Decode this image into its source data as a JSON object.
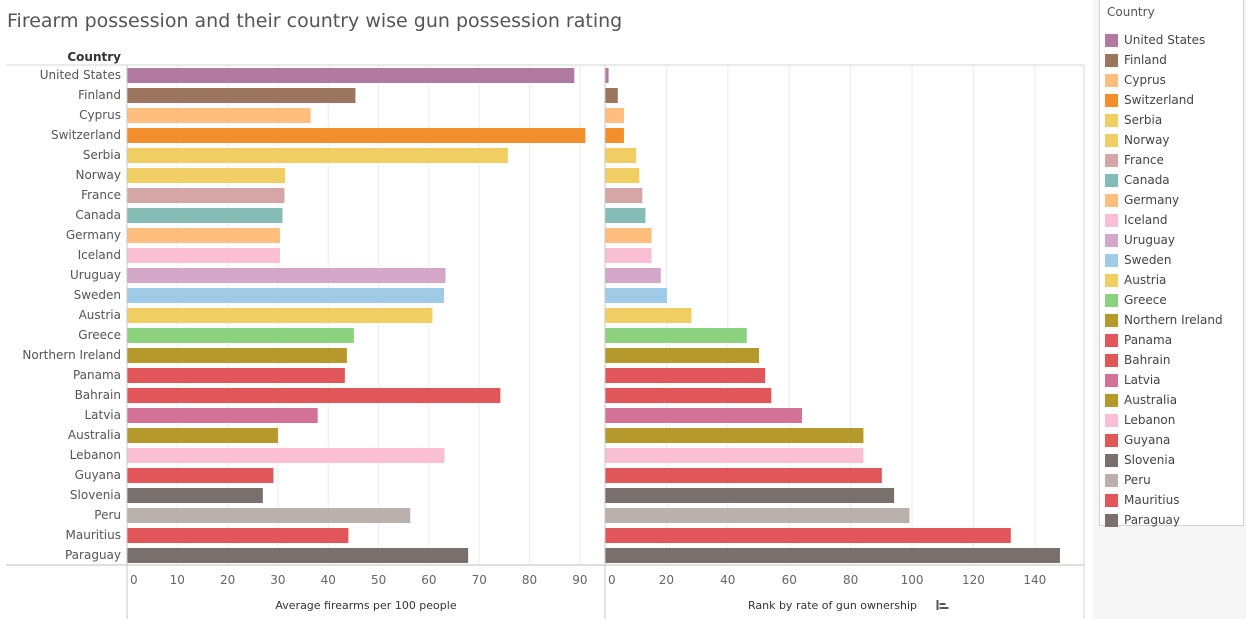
{
  "title": "Firearm possession and their country wise gun possession rating",
  "chart_data": {
    "type": "bar",
    "orientation": "horizontal",
    "row_header": "Country",
    "categories": [
      "United States",
      "Finland",
      "Cyprus",
      "Switzerland",
      "Serbia",
      "Norway",
      "France",
      "Canada",
      "Germany",
      "Iceland",
      "Uruguay",
      "Sweden",
      "Austria",
      "Greece",
      "Northern Ireland",
      "Panama",
      "Bahrain",
      "Latvia",
      "Australia",
      "Lebanon",
      "Guyana",
      "Slovenia",
      "Peru",
      "Mauritius",
      "Paraguay"
    ],
    "colors": [
      "#b07aa1",
      "#9c755f",
      "#ffbe7d",
      "#f28e2b",
      "#f1ce63",
      "#f1ce63",
      "#d4a6a6",
      "#86bcb6",
      "#ffbe7d",
      "#fabfd2",
      "#d4a6c8",
      "#a0cbe8",
      "#f1ce63",
      "#8cd17d",
      "#b6992d",
      "#e15759",
      "#e15759",
      "#d37295",
      "#b6992d",
      "#fabfd2",
      "#e15759",
      "#79706e",
      "#bab0ac",
      "#e15759",
      "#79706e"
    ],
    "panels": [
      {
        "xlabel": "Average firearms per 100 people",
        "xlim": [
          0,
          95
        ],
        "ticks": [
          0,
          10,
          20,
          30,
          40,
          50,
          60,
          70,
          80,
          90
        ],
        "values": [
          88.8,
          45.3,
          36.4,
          91.0,
          75.6,
          31.3,
          31.2,
          30.8,
          30.3,
          30.3,
          63.2,
          62.9,
          60.6,
          45.0,
          43.6,
          43.2,
          74.1,
          37.8,
          29.9,
          63.0,
          29.0,
          26.9,
          56.2,
          43.9,
          67.7
        ]
      },
      {
        "xlabel": "Rank by rate of gun ownership",
        "xlim": [
          0,
          156
        ],
        "ticks": [
          0,
          20,
          40,
          60,
          80,
          100,
          120,
          140
        ],
        "values": [
          1,
          4,
          6,
          6,
          10,
          11,
          12,
          13,
          15,
          15,
          18,
          20,
          28,
          46,
          50,
          52,
          54,
          64,
          84,
          84,
          90,
          94,
          99,
          132,
          148
        ]
      }
    ]
  },
  "legend": {
    "title": "Country",
    "position": "right",
    "items": [
      {
        "label": "United States",
        "color": "#b07aa1"
      },
      {
        "label": "Finland",
        "color": "#9c755f"
      },
      {
        "label": "Cyprus",
        "color": "#ffbe7d"
      },
      {
        "label": "Switzerland",
        "color": "#f28e2b"
      },
      {
        "label": "Serbia",
        "color": "#f1ce63"
      },
      {
        "label": "Norway",
        "color": "#f1ce63"
      },
      {
        "label": "France",
        "color": "#d4a6a6"
      },
      {
        "label": "Canada",
        "color": "#86bcb6"
      },
      {
        "label": "Germany",
        "color": "#ffbe7d"
      },
      {
        "label": "Iceland",
        "color": "#fabfd2"
      },
      {
        "label": "Uruguay",
        "color": "#d4a6c8"
      },
      {
        "label": "Sweden",
        "color": "#a0cbe8"
      },
      {
        "label": "Austria",
        "color": "#f1ce63"
      },
      {
        "label": "Greece",
        "color": "#8cd17d"
      },
      {
        "label": "Northern Ireland",
        "color": "#b6992d"
      },
      {
        "label": "Panama",
        "color": "#e15759"
      },
      {
        "label": "Bahrain",
        "color": "#e15759"
      },
      {
        "label": "Latvia",
        "color": "#d37295"
      },
      {
        "label": "Australia",
        "color": "#b6992d"
      },
      {
        "label": "Lebanon",
        "color": "#fabfd2"
      },
      {
        "label": "Guyana",
        "color": "#e15759"
      },
      {
        "label": "Slovenia",
        "color": "#79706e"
      },
      {
        "label": "Peru",
        "color": "#bab0ac"
      },
      {
        "label": "Mauritius",
        "color": "#e15759"
      },
      {
        "label": "Paraguay",
        "color": "#79706e"
      }
    ]
  },
  "sort_icon": "sort-descending-icon"
}
